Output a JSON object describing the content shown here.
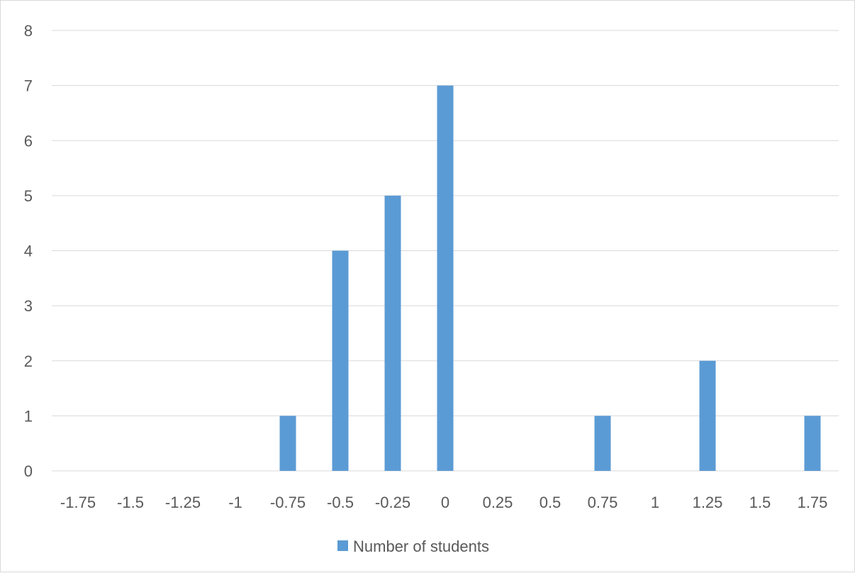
{
  "chart_data": {
    "type": "bar",
    "categories": [
      "-1.75",
      "-1.5",
      "-1.25",
      "-1",
      "-0.75",
      "-0.5",
      "-0.25",
      "0",
      "0.25",
      "0.5",
      "0.75",
      "1",
      "1.25",
      "1.5",
      "1.75"
    ],
    "series": [
      {
        "name": "Number of students",
        "color": "#5b9bd5",
        "values": [
          0,
          0,
          0,
          0,
          1,
          4,
          5,
          7,
          0,
          0,
          1,
          0,
          2,
          0,
          1
        ]
      }
    ],
    "title": "",
    "xlabel": "",
    "ylabel": "",
    "ylim": [
      0,
      8
    ],
    "yticks": [
      "0",
      "1",
      "2",
      "3",
      "4",
      "5",
      "6",
      "7",
      "8"
    ],
    "grid": true,
    "legend_position": "bottom",
    "colors": {
      "gridline": "#d9d9d9",
      "text": "#595959",
      "border": "#d9d9d9"
    }
  }
}
